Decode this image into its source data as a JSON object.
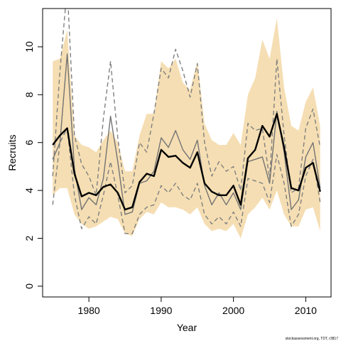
{
  "chart_data": {
    "type": "line",
    "title": "",
    "xlabel": "Year",
    "ylabel": "Recruits",
    "xlim": [
      1973.6,
      2013.5
    ],
    "ylim": [
      -0.45,
      11.6
    ],
    "x_ticks": [
      "1980",
      "1990",
      "2000",
      "2010"
    ],
    "x_tick_values": [
      1980,
      1990,
      2000,
      2010
    ],
    "y_ticks": [
      "0",
      "2",
      "4",
      "6",
      "8",
      "10"
    ],
    "y_tick_values": [
      0,
      2,
      4,
      6,
      8,
      10
    ],
    "x": [
      1975,
      1976,
      1977,
      1978,
      1979,
      1980,
      1981,
      1982,
      1983,
      1984,
      1985,
      1986,
      1987,
      1988,
      1989,
      1990,
      1991,
      1992,
      1993,
      1994,
      1995,
      1996,
      1997,
      1998,
      1999,
      2000,
      2001,
      2002,
      2003,
      2004,
      2005,
      2006,
      2007,
      2008,
      2009,
      2010,
      2011,
      2012
    ],
    "series": [
      {
        "role": "band",
        "color": "#f5deb3",
        "upper": [
          9.4,
          9.5,
          10.7,
          6.3,
          5.9,
          5.8,
          5.6,
          6.1,
          6.5,
          6.0,
          4.8,
          4.8,
          6.3,
          7.2,
          7.2,
          9.4,
          9.1,
          9.5,
          8.5,
          8.2,
          9.4,
          6.8,
          6.1,
          5.9,
          5.9,
          6.4,
          5.9,
          8.0,
          8.7,
          10.3,
          9.5,
          11.2,
          8.3,
          6.7,
          6.5,
          7.7,
          8.3,
          6.7
        ],
        "lower": [
          3.8,
          4.1,
          4.1,
          3.0,
          2.6,
          2.4,
          2.5,
          2.7,
          2.9,
          2.8,
          2.2,
          2.1,
          2.8,
          3.1,
          3.0,
          3.5,
          3.3,
          3.3,
          3.2,
          3.0,
          3.3,
          2.6,
          2.3,
          2.4,
          2.3,
          2.6,
          2.0,
          3.0,
          3.3,
          3.7,
          3.2,
          4.0,
          3.0,
          2.5,
          2.5,
          3.2,
          3.3,
          2.3
        ]
      },
      {
        "role": "dashed",
        "color": "#808080",
        "values": [
          3.4,
          6.0,
          6.6,
          3.8,
          2.4,
          2.9,
          2.6,
          3.8,
          5.2,
          3.8,
          2.2,
          2.2,
          3.0,
          3.3,
          3.4,
          4.2,
          3.9,
          4.3,
          3.8,
          3.6,
          4.3,
          3.0,
          2.6,
          2.9,
          2.6,
          3.1,
          2.5,
          4.5,
          4.4,
          4.3,
          3.5,
          5.5,
          4.3,
          2.5,
          3.0,
          4.6,
          5.3,
          3.5
        ]
      },
      {
        "role": "dashed",
        "color": "#808080",
        "values": [
          4.6,
          9.0,
          12.5,
          6.3,
          5.1,
          4.6,
          3.8,
          7.0,
          9.4,
          6.2,
          3.9,
          4.2,
          6.0,
          5.6,
          7.2,
          9.1,
          8.7,
          9.9,
          9.0,
          7.9,
          9.3,
          6.0,
          4.6,
          5.2,
          4.8,
          5.0,
          4.0,
          6.8,
          6.5,
          6.6,
          4.5,
          9.5,
          6.3,
          3.9,
          4.1,
          6.6,
          7.4,
          5.8
        ]
      },
      {
        "role": "grey",
        "color": "#737373",
        "values": [
          5.3,
          6.0,
          9.7,
          4.9,
          3.2,
          3.7,
          3.4,
          4.5,
          7.1,
          5.2,
          3.0,
          3.1,
          4.3,
          4.4,
          4.8,
          6.2,
          5.8,
          6.5,
          5.7,
          5.3,
          6.1,
          4.2,
          3.4,
          3.9,
          3.4,
          3.9,
          3.2,
          5.2,
          5.3,
          5.4,
          4.3,
          7.3,
          5.6,
          3.2,
          3.6,
          5.4,
          6.0,
          4.1
        ]
      },
      {
        "role": "main",
        "color": "#000000",
        "values": [
          5.9,
          6.3,
          6.6,
          4.7,
          3.75,
          3.9,
          3.8,
          4.15,
          4.25,
          3.9,
          3.2,
          3.3,
          4.35,
          4.7,
          4.6,
          5.7,
          5.4,
          5.45,
          5.15,
          4.95,
          5.6,
          4.3,
          3.95,
          3.8,
          3.8,
          4.2,
          3.4,
          5.35,
          5.7,
          6.7,
          6.25,
          7.2,
          5.8,
          4.1,
          4.0,
          4.95,
          5.15,
          3.95
        ]
      }
    ],
    "grid": false,
    "legend": "none"
  },
  "credit": "stockassessment.org, TDT, r3817"
}
